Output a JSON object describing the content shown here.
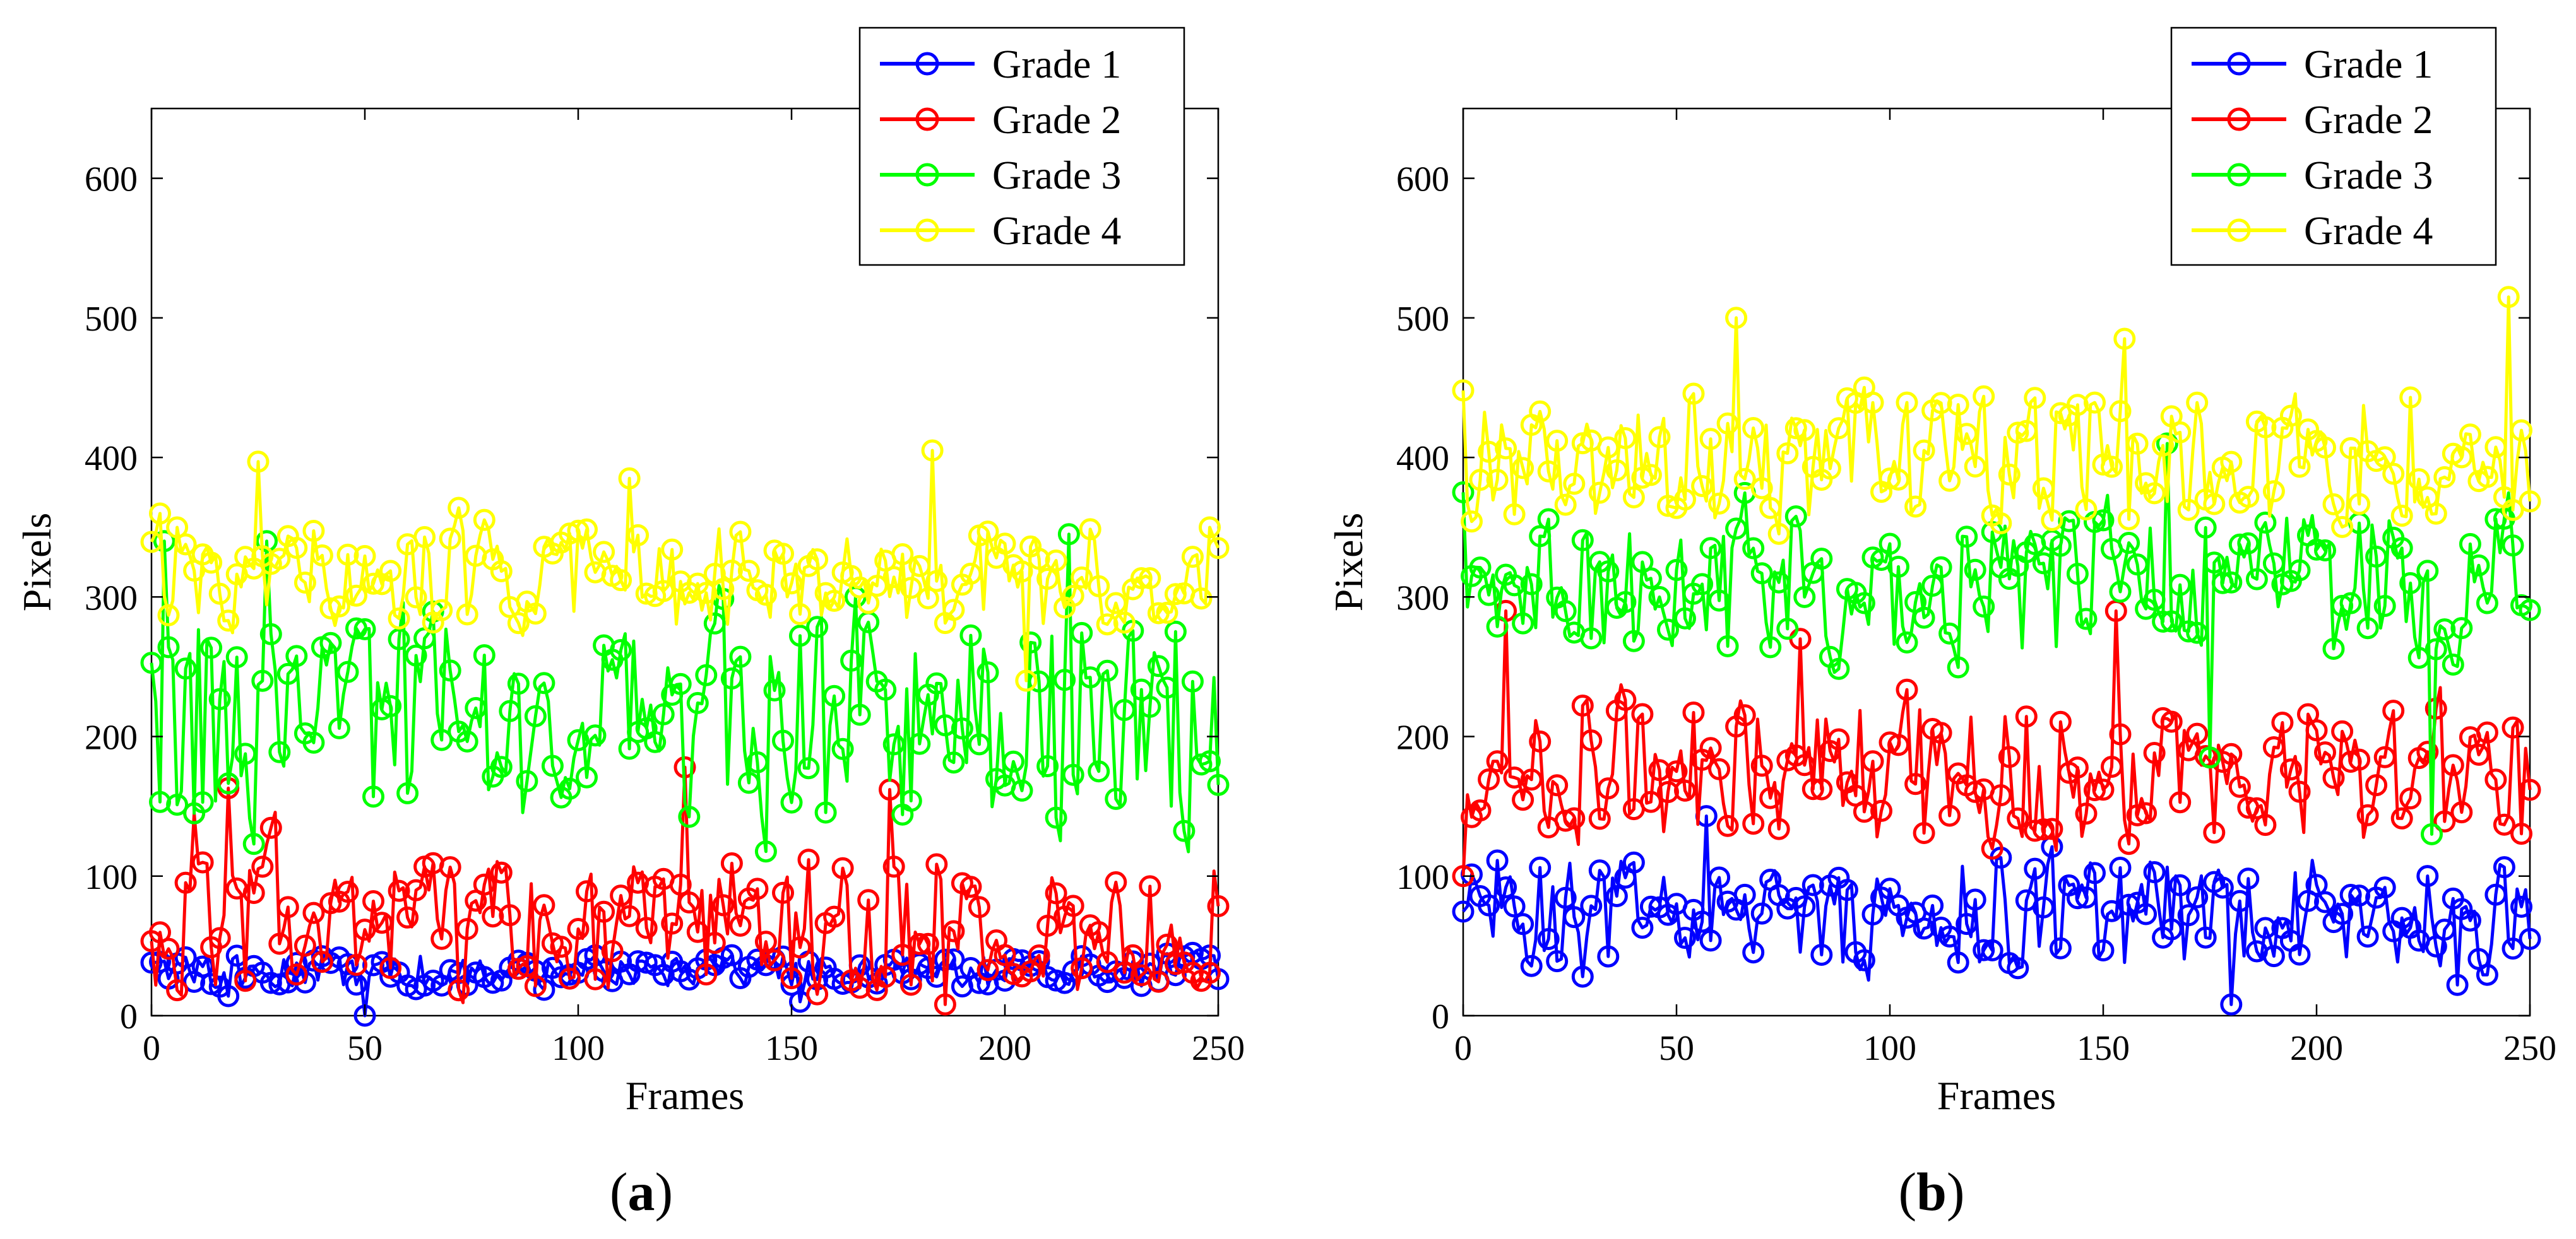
{
  "chart_data": [
    {
      "type": "line",
      "panel_label": "a",
      "title": "",
      "xlabel": "Frames",
      "ylabel": "Pixels",
      "xlim": [
        0,
        250
      ],
      "ylim": [
        0,
        650
      ],
      "xticks": [
        0,
        50,
        100,
        150,
        200,
        250
      ],
      "yticks": [
        0,
        100,
        200,
        300,
        400,
        500,
        600
      ],
      "legend_position": "top-right",
      "markers": "circle",
      "series": [
        {
          "name": "Grade 1",
          "color": "#0000ff",
          "base": 32,
          "spread": 9,
          "min": 0,
          "max": 45,
          "peaks": [
            [
              50,
              0
            ],
            [
              0,
              38
            ],
            [
              18,
              14
            ],
            [
              152,
              10
            ]
          ]
        },
        {
          "name": "Grade 2",
          "color": "#ff0000",
          "base": 65,
          "spread": 38,
          "min": 8,
          "max": 180,
          "peaks": [
            [
              18,
              163
            ],
            [
              125,
              178
            ],
            [
              173,
              162
            ],
            [
              186,
              8
            ],
            [
              10,
              145
            ]
          ]
        },
        {
          "name": "Grade 3",
          "color": "#00ff00",
          "base": 210,
          "spread": 55,
          "min": 95,
          "max": 350,
          "peaks": [
            [
              3,
              340
            ],
            [
              27,
              340
            ],
            [
              165,
              300
            ],
            [
              215,
              345
            ],
            [
              10,
              145
            ]
          ]
        },
        {
          "name": "Grade 4",
          "color": "#ffff00",
          "base": 315,
          "spread": 28,
          "min": 240,
          "max": 405,
          "peaks": [
            [
              25,
              397
            ],
            [
              183,
              405
            ],
            [
              112,
              385
            ],
            [
              205,
              240
            ]
          ]
        }
      ]
    },
    {
      "type": "line",
      "panel_label": "b",
      "title": "",
      "xlabel": "Frames",
      "ylabel": "Pixels",
      "xlim": [
        0,
        250
      ],
      "ylim": [
        0,
        650
      ],
      "xticks": [
        0,
        50,
        100,
        150,
        200,
        250
      ],
      "yticks": [
        0,
        100,
        200,
        300,
        400,
        500,
        600
      ],
      "legend_position": "top-right",
      "markers": "circle",
      "series": [
        {
          "name": "Grade 1",
          "color": "#0000ff",
          "base": 75,
          "spread": 30,
          "min": 8,
          "max": 145,
          "peaks": [
            [
              180,
              8
            ],
            [
              57,
              143
            ],
            [
              28,
              28
            ],
            [
              233,
              22
            ]
          ]
        },
        {
          "name": "Grade 2",
          "color": "#ff0000",
          "base": 175,
          "spread": 38,
          "min": 85,
          "max": 290,
          "peaks": [
            [
              10,
              290
            ],
            [
              153,
              290
            ],
            [
              0,
              100
            ],
            [
              79,
              270
            ]
          ]
        },
        {
          "name": "Grade 3",
          "color": "#00ff00",
          "base": 310,
          "spread": 38,
          "min": 125,
          "max": 415,
          "peaks": [
            [
              0,
              375
            ],
            [
              165,
              410
            ],
            [
              175,
              185
            ],
            [
              227,
              130
            ]
          ]
        },
        {
          "name": "Grade 4",
          "color": "#ffff00",
          "base": 400,
          "spread": 35,
          "min": 320,
          "max": 515,
          "peaks": [
            [
              64,
              500
            ],
            [
              245,
              515
            ],
            [
              0,
              448
            ],
            [
              155,
              485
            ]
          ]
        }
      ]
    }
  ]
}
